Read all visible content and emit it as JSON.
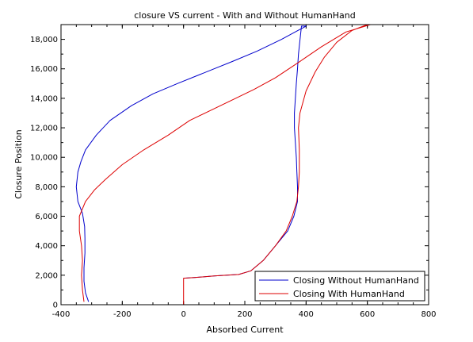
{
  "chart_data": {
    "type": "line",
    "title": "closure VS current - With and Without HumanHand",
    "xlabel": "Absorbed Current",
    "ylabel": "Closure Position",
    "xlim": [
      -400,
      800
    ],
    "ylim": [
      0,
      19000
    ],
    "xticks": [
      -400,
      -200,
      0,
      200,
      400,
      600,
      800
    ],
    "xtick_labels": [
      "-400",
      "-200",
      "0",
      "200",
      "400",
      "600",
      "800"
    ],
    "yticks": [
      0,
      2000,
      4000,
      6000,
      8000,
      10000,
      12000,
      14000,
      16000,
      18000
    ],
    "ytick_labels": [
      "0",
      "2,000",
      "4,000",
      "6,000",
      "8,000",
      "10,000",
      "12,000",
      "14,000",
      "16,000",
      "18,000"
    ],
    "grid": false,
    "legend_position": "bottom-right",
    "series": [
      {
        "name": "Closing Without HumanHand",
        "color": "#0000cc",
        "points": [
          [
            -310,
            200
          ],
          [
            -320,
            800
          ],
          [
            -325,
            1600
          ],
          [
            -325,
            2500
          ],
          [
            -322,
            3500
          ],
          [
            -322,
            4500
          ],
          [
            -323,
            5300
          ],
          [
            -330,
            6200
          ],
          [
            -345,
            7000
          ],
          [
            -350,
            8000
          ],
          [
            -345,
            9000
          ],
          [
            -335,
            9700
          ],
          [
            -320,
            10500
          ],
          [
            -285,
            11500
          ],
          [
            -240,
            12500
          ],
          [
            -170,
            13500
          ],
          [
            -100,
            14300
          ],
          [
            -20,
            15000
          ],
          [
            40,
            15500
          ],
          [
            100,
            16000
          ],
          [
            160,
            16500
          ],
          [
            240,
            17200
          ],
          [
            320,
            18000
          ],
          [
            400,
            18900
          ],
          [
            385,
            18900
          ],
          [
            375,
            17000
          ],
          [
            372,
            16000
          ],
          [
            368,
            15000
          ],
          [
            365,
            14000
          ],
          [
            362,
            13000
          ],
          [
            362,
            12000
          ],
          [
            365,
            11000
          ],
          [
            368,
            10000
          ],
          [
            370,
            9000
          ],
          [
            372,
            8000
          ],
          [
            372,
            7000
          ],
          [
            360,
            6000
          ],
          [
            340,
            5000
          ],
          [
            300,
            4000
          ],
          [
            260,
            3000
          ],
          [
            220,
            2300
          ],
          [
            180,
            2050
          ],
          [
            100,
            1950
          ],
          [
            40,
            1850
          ],
          [
            0,
            1800
          ]
        ]
      },
      {
        "name": "Closing With HumanHand",
        "color": "#dd0000",
        "points": [
          [
            -325,
            200
          ],
          [
            -330,
            1000
          ],
          [
            -333,
            2000
          ],
          [
            -330,
            3000
          ],
          [
            -333,
            4000
          ],
          [
            -340,
            5000
          ],
          [
            -340,
            6000
          ],
          [
            -320,
            7000
          ],
          [
            -290,
            7800
          ],
          [
            -255,
            8500
          ],
          [
            -200,
            9500
          ],
          [
            -130,
            10500
          ],
          [
            -50,
            11500
          ],
          [
            20,
            12500
          ],
          [
            90,
            13200
          ],
          [
            160,
            13900
          ],
          [
            230,
            14600
          ],
          [
            300,
            15400
          ],
          [
            380,
            16500
          ],
          [
            450,
            17500
          ],
          [
            530,
            18500
          ],
          [
            610,
            19000
          ],
          [
            600,
            19000
          ],
          [
            550,
            18600
          ],
          [
            500,
            17800
          ],
          [
            460,
            16800
          ],
          [
            430,
            15800
          ],
          [
            400,
            14500
          ],
          [
            380,
            13000
          ],
          [
            375,
            12000
          ],
          [
            378,
            10500
          ],
          [
            378,
            9000
          ],
          [
            375,
            8000
          ],
          [
            370,
            7000
          ],
          [
            355,
            6000
          ],
          [
            335,
            5000
          ],
          [
            300,
            4000
          ],
          [
            260,
            3000
          ],
          [
            220,
            2300
          ],
          [
            180,
            2050
          ],
          [
            100,
            1950
          ],
          [
            40,
            1850
          ],
          [
            0,
            1800
          ],
          [
            0,
            0
          ]
        ]
      }
    ]
  }
}
